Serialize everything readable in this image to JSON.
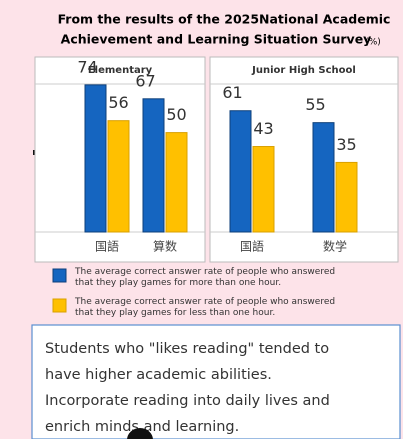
{
  "title_lines": [
    "From the results of the 2025National Academic",
    "Achievement and Learning Situation Survey"
  ],
  "unit": "(%)",
  "chart_data": [
    {
      "type": "bar",
      "title": "Elementary",
      "categories": [
        "国語",
        "算数"
      ],
      "series": [
        {
          "name": "The average correct answer rate of people who answered that they play games for more than one hour.",
          "color": "#1565c0",
          "values": [
            74,
            67
          ]
        },
        {
          "name": "The average correct answer rate of people who answered that they play games for less than one hour.",
          "color": "#ffc000",
          "values": [
            56,
            50
          ]
        }
      ],
      "ylim": [
        0,
        100
      ]
    },
    {
      "type": "bar",
      "title": "Junior High School",
      "categories": [
        "国語",
        "数学"
      ],
      "series": [
        {
          "color": "#1565c0",
          "values": [
            61,
            55
          ]
        },
        {
          "color": "#ffc000",
          "values": [
            43,
            35
          ]
        }
      ],
      "ylim": [
        0,
        100
      ]
    }
  ],
  "message": [
    "Students who \"likes reading\" tended to",
    "have higher academic abilities.",
    "Incorporate reading into daily lives and",
    "enrich minds and learning."
  ]
}
